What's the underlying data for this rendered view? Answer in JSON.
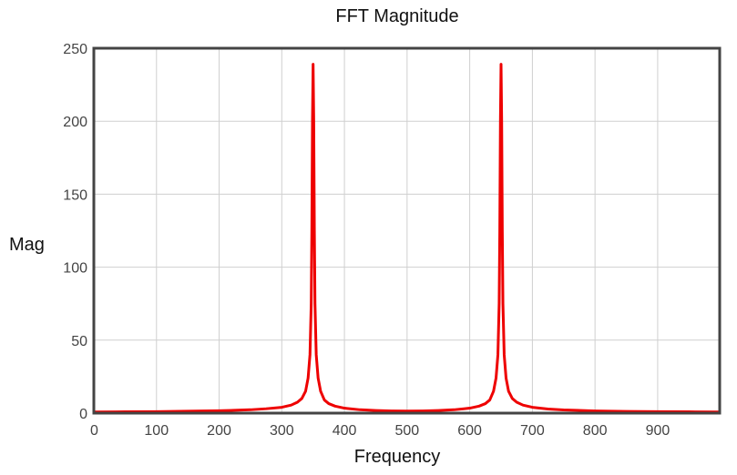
{
  "chart_data": {
    "type": "line",
    "title": "FFT Magnitude",
    "xlabel": "Frequency",
    "ylabel": "Mag",
    "xlim": [
      0,
      999
    ],
    "ylim": [
      0,
      250
    ],
    "x_ticks": [
      0,
      100,
      200,
      300,
      400,
      500,
      600,
      700,
      800,
      900
    ],
    "y_ticks": [
      0,
      50,
      100,
      150,
      200,
      250
    ],
    "grid": true,
    "legend": "none",
    "series": [
      {
        "color": "#ee0000",
        "x": [
          0,
          50,
          100,
          150,
          200,
          250,
          275,
          300,
          315,
          325,
          332,
          338,
          342,
          345,
          347,
          348,
          349,
          350,
          351,
          352,
          353,
          355,
          358,
          362,
          368,
          375,
          385,
          400,
          425,
          450,
          475,
          500,
          525,
          550,
          575,
          600,
          615,
          625,
          632,
          638,
          642,
          645,
          647,
          648,
          649,
          650,
          651,
          652,
          653,
          655,
          658,
          662,
          668,
          675,
          685,
          700,
          725,
          750,
          800,
          850,
          900,
          950,
          999
        ],
        "y": [
          0.8,
          0.9,
          1.0,
          1.3,
          1.6,
          2.3,
          3.0,
          4.0,
          5.5,
          7.5,
          10,
          15,
          24,
          40,
          75,
          125,
          200,
          239,
          200,
          125,
          75,
          40,
          24,
          15,
          9,
          6.5,
          4.8,
          3.4,
          2.3,
          1.8,
          1.5,
          1.4,
          1.5,
          1.8,
          2.3,
          3.4,
          4.8,
          6.5,
          9,
          15,
          24,
          40,
          75,
          125,
          200,
          239,
          200,
          125,
          75,
          40,
          24,
          15,
          10,
          7.5,
          5.5,
          4.0,
          2.8,
          2.2,
          1.5,
          1.2,
          1.0,
          0.9,
          0.8
        ]
      }
    ]
  }
}
